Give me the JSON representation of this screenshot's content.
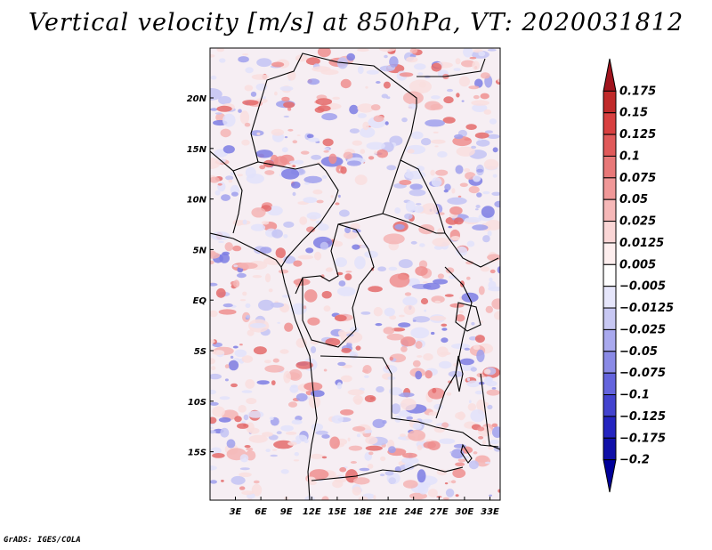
{
  "title": "Vertical velocity [m/s] at 850hPa, VT: 2020031812",
  "credit": "GrADS: IGES/COLA",
  "map": {
    "lon_labels": [
      "3E",
      "6E",
      "9E",
      "12E",
      "15E",
      "18E",
      "21E",
      "24E",
      "27E",
      "30E",
      "33E"
    ],
    "lat_labels": [
      "20N",
      "15N",
      "10N",
      "5N",
      "EQ",
      "5S",
      "10S",
      "15S"
    ],
    "field_colors": {
      "positive": [
        "#f9dede",
        "#f4b4b4",
        "#ee8e8e",
        "#e46b6b"
      ],
      "negative": [
        "#e2e2fa",
        "#c3c3f3",
        "#a0a0ec",
        "#7c7ce3"
      ],
      "outline": "#000000"
    }
  },
  "colorbar": {
    "labels": [
      "0.175",
      "0.15",
      "0.125",
      "0.1",
      "0.075",
      "0.05",
      "0.025",
      "0.0125",
      "0.005",
      "−0.005",
      "−0.0125",
      "−0.025",
      "−0.05",
      "−0.075",
      "−0.1",
      "−0.125",
      "−0.175",
      "−0.2"
    ],
    "colors": [
      "#a0141e",
      "#c02a2a",
      "#d84040",
      "#e05a5a",
      "#e87878",
      "#f09898",
      "#f6b8b8",
      "#fad6d6",
      "#fdeeee",
      "#ffffff",
      "#e6e6fb",
      "#c8c8f3",
      "#a9a9ee",
      "#8a8ae6",
      "#6464dd",
      "#4343cf",
      "#2424c0",
      "#1010a8",
      "#00009a"
    ]
  }
}
